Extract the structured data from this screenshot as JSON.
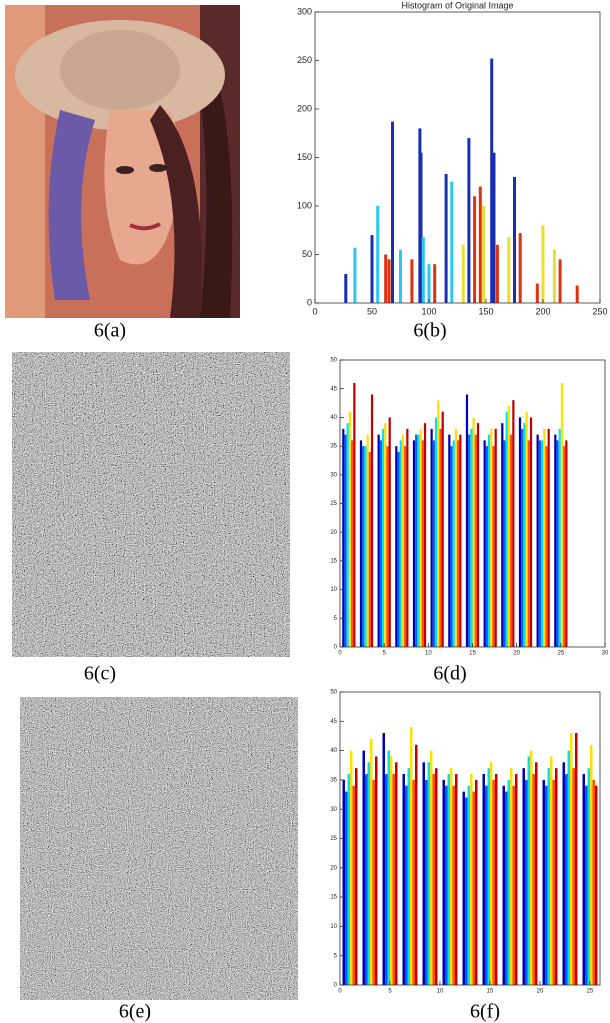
{
  "captions": [
    "6(a)",
    "6(b)",
    "6(c)",
    "6(d)",
    "6(e)",
    "6(f)"
  ],
  "chart_data": [
    {
      "type": "bar",
      "title": "Histogram of Original Image",
      "xlim": [
        0,
        250
      ],
      "xticks": [
        0,
        50,
        100,
        150,
        200,
        250
      ],
      "ylim": [
        0,
        300
      ],
      "yticks": [
        0,
        50,
        100,
        150,
        200,
        250,
        300
      ],
      "series": [
        {
          "color": "#1a2fb0",
          "x": [
            27,
            50,
            68,
            92,
            93,
            115,
            135,
            155,
            157,
            175
          ],
          "values": [
            30,
            70,
            187,
            180,
            155,
            133,
            170,
            252,
            155,
            130
          ]
        },
        {
          "color": "#28c8f0",
          "x": [
            35,
            55,
            75,
            95,
            100,
            120
          ],
          "values": [
            57,
            100,
            55,
            68,
            40,
            125
          ]
        },
        {
          "color": "#e8e030",
          "x": [
            130,
            148,
            170,
            200,
            210
          ],
          "values": [
            60,
            100,
            68,
            80,
            55
          ]
        },
        {
          "color": "#e03010",
          "x": [
            62,
            65,
            85,
            105,
            140,
            145,
            160,
            180,
            195,
            215,
            230
          ],
          "values": [
            50,
            45,
            45,
            40,
            110,
            120,
            60,
            72,
            20,
            45,
            18
          ]
        }
      ]
    },
    {
      "type": "grouped-bar",
      "xlim": [
        0,
        30
      ],
      "xticks": [
        0,
        5,
        10,
        15,
        20,
        25,
        30
      ],
      "ylim": [
        0,
        50
      ],
      "yticks": [
        0,
        5,
        10,
        15,
        20,
        25,
        30,
        35,
        40,
        45,
        50
      ],
      "x": [
        1,
        3,
        5,
        7,
        9,
        11,
        13,
        15,
        17,
        19,
        21,
        23,
        25
      ],
      "series": [
        {
          "color": "#0000b0",
          "values": [
            38,
            36,
            37,
            35,
            36,
            38,
            37,
            44,
            36,
            39,
            40,
            37,
            37
          ]
        },
        {
          "color": "#0060ff",
          "values": [
            37,
            35,
            36,
            34,
            37,
            36,
            35,
            37,
            35,
            36,
            38,
            36,
            36
          ]
        },
        {
          "color": "#00e0ff",
          "values": [
            39,
            35,
            38,
            36,
            37,
            40,
            36,
            38,
            37,
            41,
            39,
            36,
            38
          ]
        },
        {
          "color": "#ffe000",
          "values": [
            41,
            37,
            39,
            37,
            38,
            43,
            38,
            40,
            38,
            42,
            41,
            38,
            46
          ]
        },
        {
          "color": "#ff5000",
          "values": [
            36,
            34,
            35,
            35,
            36,
            38,
            36,
            37,
            35,
            37,
            36,
            35,
            35
          ]
        },
        {
          "color": "#c00000",
          "values": [
            46,
            44,
            40,
            38,
            39,
            41,
            37,
            39,
            38,
            43,
            40,
            38,
            36
          ]
        }
      ]
    },
    {
      "type": "grouped-bar",
      "xlim": [
        0,
        26
      ],
      "xticks": [
        0,
        5,
        10,
        15,
        20,
        25
      ],
      "ylim": [
        0,
        50
      ],
      "yticks": [
        0,
        5,
        10,
        15,
        20,
        25,
        30,
        35,
        40,
        45,
        50
      ],
      "x": [
        1,
        3,
        5,
        7,
        9,
        11,
        13,
        15,
        17,
        19,
        21,
        23,
        25
      ],
      "series": [
        {
          "color": "#0000b0",
          "values": [
            35,
            40,
            43,
            36,
            38,
            35,
            33,
            36,
            34,
            37,
            35,
            38,
            36
          ]
        },
        {
          "color": "#0060ff",
          "values": [
            33,
            36,
            36,
            34,
            35,
            34,
            32,
            34,
            33,
            35,
            34,
            36,
            34
          ]
        },
        {
          "color": "#00e0ff",
          "values": [
            36,
            38,
            40,
            37,
            38,
            36,
            34,
            37,
            35,
            39,
            37,
            40,
            37
          ]
        },
        {
          "color": "#ffe000",
          "values": [
            40,
            42,
            39,
            44,
            40,
            37,
            36,
            38,
            37,
            40,
            39,
            43,
            41
          ]
        },
        {
          "color": "#ff5000",
          "values": [
            34,
            35,
            36,
            35,
            36,
            34,
            33,
            35,
            34,
            36,
            35,
            37,
            35
          ]
        },
        {
          "color": "#c00000",
          "values": [
            37,
            39,
            38,
            41,
            37,
            36,
            35,
            36,
            36,
            38,
            37,
            43,
            34
          ]
        }
      ]
    }
  ]
}
